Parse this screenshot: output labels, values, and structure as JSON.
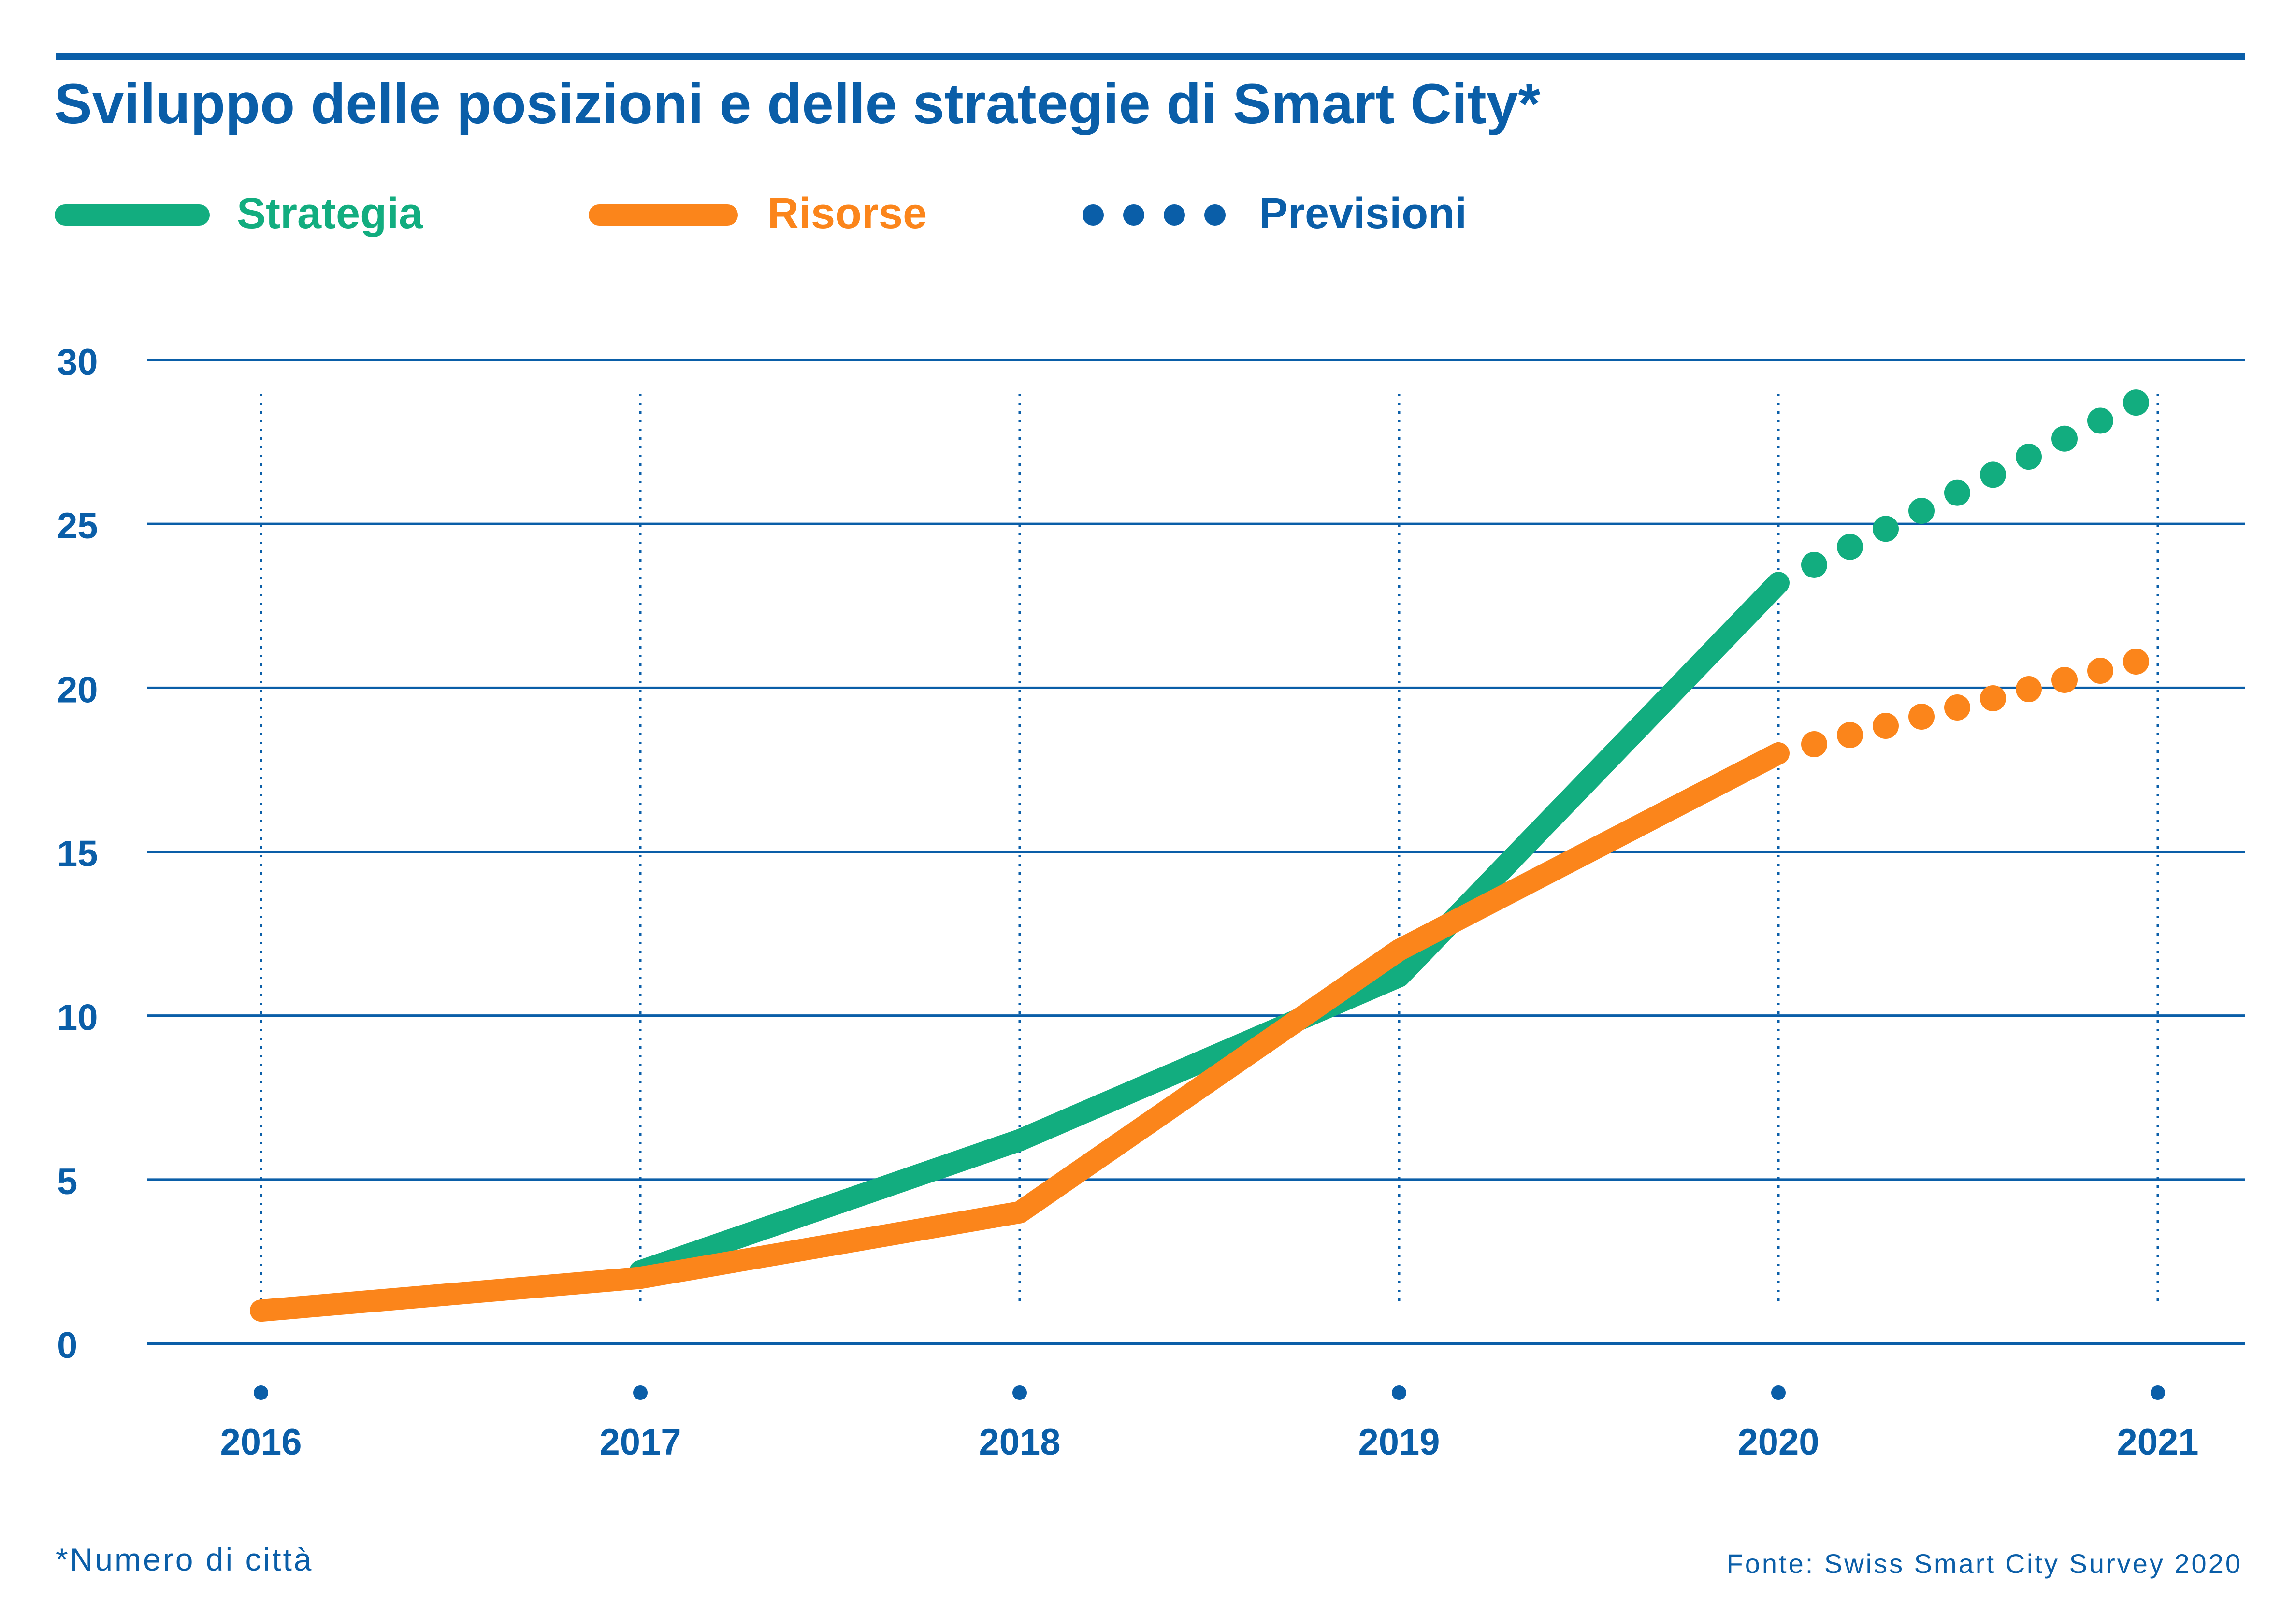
{
  "colors": {
    "brand_blue": "#0a5ea8",
    "strategy_green": "#12ad7f",
    "resources_orange": "#fb851b"
  },
  "header": {
    "title": "Sviluppo delle posizioni e delle strategie di Smart City*"
  },
  "legend": {
    "items": [
      {
        "label": "Strategia",
        "style": "solid",
        "color": "#12ad7f"
      },
      {
        "label": "Risorse",
        "style": "solid",
        "color": "#fb851b"
      },
      {
        "label": "Previsioni",
        "style": "dotted",
        "color": "#0a5ea8"
      }
    ]
  },
  "footer": {
    "note": "*Numero di città",
    "source": "Fonte: Swiss Smart City Survey 2020"
  },
  "chart_data": {
    "type": "line",
    "x": [
      "2016",
      "2017",
      "2018",
      "2019",
      "2020",
      "2021"
    ],
    "ylim": [
      0,
      30
    ],
    "y_ticks": [
      "0",
      "5",
      "10",
      "15",
      "20",
      "25",
      "30"
    ],
    "grid": {
      "horizontal": true,
      "vertical": "dotted"
    },
    "legend_position": "top-left",
    "series": [
      {
        "name": "Strategia",
        "color": "#12ad7f",
        "values": [
          null,
          2.2,
          6.2,
          11.2,
          23.2,
          28.7
        ],
        "forecast_from": "2020"
      },
      {
        "name": "Risorse",
        "color": "#fb851b",
        "values": [
          1.0,
          2.0,
          4.0,
          12.0,
          18.0,
          20.8
        ],
        "forecast_from": "2020"
      }
    ]
  }
}
